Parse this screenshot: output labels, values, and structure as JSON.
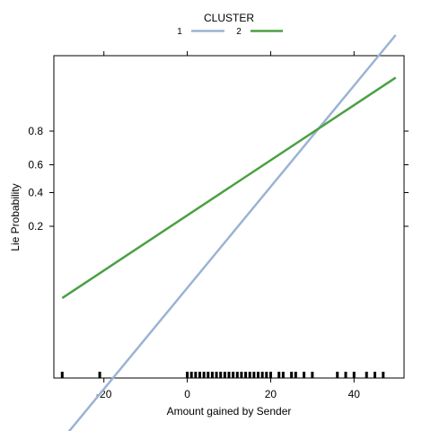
{
  "chart_data": {
    "type": "line",
    "title": "",
    "xlabel": "Amount gained by Sender",
    "ylabel": "Lie Probability",
    "xlim": [
      -32,
      52
    ],
    "x_ticks": [
      -20,
      0,
      20,
      40
    ],
    "y_ticks": [
      0.2,
      0.4,
      0.6,
      0.8
    ],
    "legend": {
      "title": "CLUSTER",
      "position": "top"
    },
    "series": [
      {
        "name": "1",
        "color": "#9bb3d4",
        "points": [
          {
            "x": -30,
            "y": 0.0005
          },
          {
            "x": 50,
            "y": 0.985
          }
        ]
      },
      {
        "name": "2",
        "color": "#4aa042",
        "points": [
          {
            "x": -30,
            "y": 0.03
          },
          {
            "x": 50,
            "y": 0.95
          }
        ]
      }
    ],
    "rug": [
      -30,
      -21,
      0,
      1,
      2,
      3,
      4,
      5,
      6,
      7,
      8,
      9,
      10,
      11,
      12,
      13,
      14,
      15,
      16,
      17,
      18,
      19,
      20,
      22,
      23,
      25,
      26,
      28,
      30,
      36,
      38,
      40,
      43,
      45,
      47
    ],
    "grid": false
  }
}
